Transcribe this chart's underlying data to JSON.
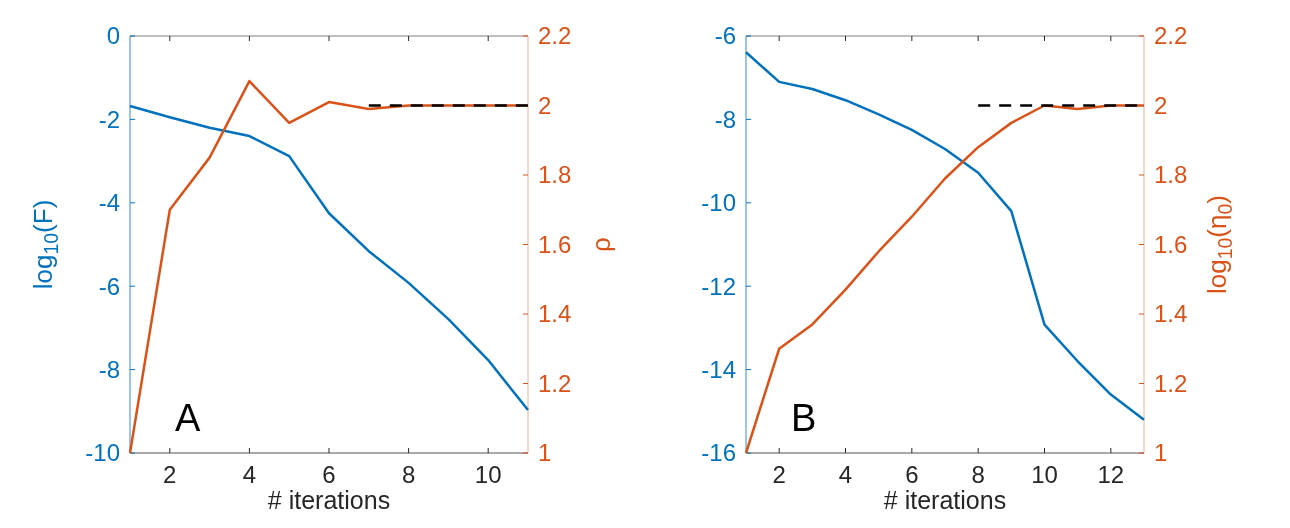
{
  "chart_data": [
    {
      "type": "line",
      "xlabel": "# iterations",
      "ylabel": "log$_{10}$(F)",
      "y2label": "ρ",
      "annotations": [
        "A"
      ],
      "xlim": [
        1,
        11
      ],
      "xticks": [
        2,
        4,
        6,
        8,
        10
      ],
      "ylim": [
        -10,
        0
      ],
      "yticks": [
        -10,
        -8,
        -6,
        -4,
        -2,
        0
      ],
      "y2lim": [
        1,
        2.2
      ],
      "y2ticks": [
        1,
        1.2,
        1.4,
        1.6,
        1.8,
        2,
        2.2
      ],
      "series": [
        {
          "color": "#0072bd",
          "axis": "y",
          "line_style": "solid",
          "x": [
            1,
            2,
            3,
            4,
            5,
            6,
            7,
            8,
            9,
            10,
            11
          ],
          "values": [
            -1.68,
            -1.95,
            -2.2,
            -2.4,
            -2.88,
            -4.25,
            -5.16,
            -5.92,
            -6.79,
            -7.77,
            -8.97
          ]
        },
        {
          "color": "#d95319",
          "axis": "y2",
          "line_style": "solid",
          "x": [
            1,
            2,
            3,
            4,
            5,
            6,
            7,
            8,
            9,
            10,
            11
          ],
          "values": [
            1,
            1.7,
            1.85,
            2.07,
            1.95,
            2.01,
            1.99,
            2,
            2,
            2,
            2
          ]
        },
        {
          "color": "#000000",
          "axis": "y2",
          "line_style": "dashed",
          "x": [
            7,
            11
          ],
          "values": [
            2,
            2
          ]
        }
      ]
    },
    {
      "type": "line",
      "xlabel": "# iterations",
      "y2label": "log$_{10}$(η$_{0}$)",
      "annotations": [
        "B"
      ],
      "xlim": [
        1,
        13
      ],
      "xticks": [
        2,
        4,
        6,
        8,
        10,
        12
      ],
      "ylim": [
        -16,
        -6
      ],
      "yticks": [
        -16,
        -14,
        -12,
        -10,
        -8,
        -6
      ],
      "y2lim": [
        1,
        2.2
      ],
      "y2ticks": [
        1,
        1.2,
        1.4,
        1.6,
        1.8,
        2,
        2.2
      ],
      "series": [
        {
          "color": "#0072bd",
          "axis": "y",
          "line_style": "solid",
          "x": [
            1,
            2,
            3,
            4,
            5,
            6,
            7,
            8,
            9,
            10,
            11,
            12,
            13
          ],
          "values": [
            -6.39,
            -7.1,
            -7.27,
            -7.54,
            -7.88,
            -8.25,
            -8.71,
            -9.28,
            -10.2,
            -12.92,
            -13.8,
            -14.6,
            -15.2
          ]
        },
        {
          "color": "#d95319",
          "axis": "y2",
          "line_style": "solid",
          "x": [
            1,
            2,
            3,
            4,
            5,
            6,
            7,
            8,
            9,
            10,
            11,
            12,
            13
          ],
          "values": [
            1,
            1.3,
            1.37,
            1.47,
            1.58,
            1.68,
            1.79,
            1.88,
            1.95,
            2,
            1.99,
            2,
            2
          ]
        },
        {
          "color": "#000000",
          "axis": "y2",
          "line_style": "dashed",
          "x": [
            8,
            13
          ],
          "values": [
            2,
            2
          ]
        }
      ]
    }
  ]
}
